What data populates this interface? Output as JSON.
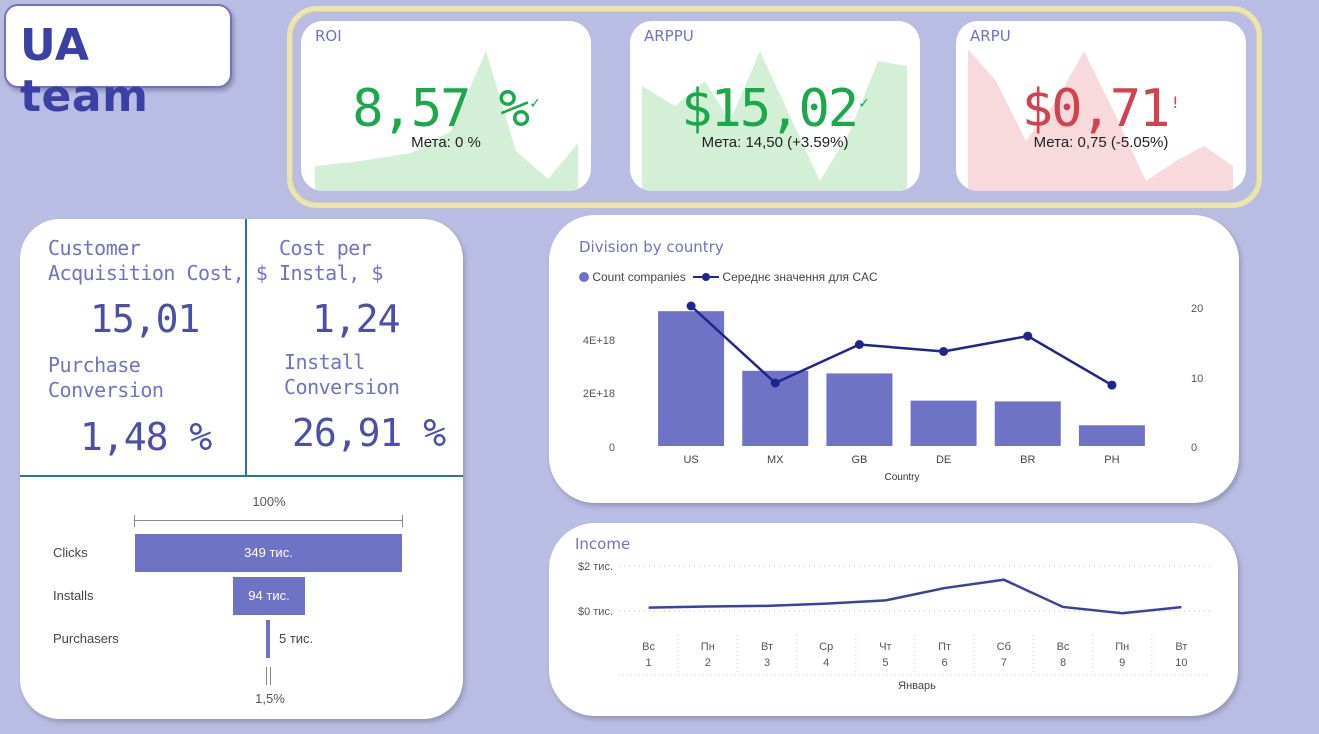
{
  "logo": {
    "text": "UA team"
  },
  "kpis": [
    {
      "title": "ROI",
      "value": "8,57 %",
      "status_icon": "✓",
      "goal": "Мета: 0 %",
      "status": "good",
      "color": "#1aa84a"
    },
    {
      "title": "ARPPU",
      "value": "$15,02",
      "status_icon": "✓",
      "goal": "Мета: 14,50 (+3.59%)",
      "status": "good",
      "color": "#1aa84a"
    },
    {
      "title": "ARPU",
      "value": "$0,71",
      "status_icon": "!",
      "goal": "Мета: 0,75 (-5.05%)",
      "status": "bad",
      "color": "#d2424e"
    }
  ],
  "metrics": {
    "cac_label_1": "Customer",
    "cac_label_2": "Acquisition Cost, $",
    "cac_value": "15,01",
    "cpi_label_1": "Cost per",
    "cpi_label_2": "Instal, $",
    "cpi_value": "1,24",
    "pc_label_1": "Purchase",
    "pc_label_2": "Conversion",
    "pc_value": "1,48 %",
    "ic_label_1": "Install",
    "ic_label_2": "Conversion",
    "ic_value": "26,91 %"
  },
  "funnel": {
    "top_label": "100%",
    "bottom_label": "1,5%",
    "rows": [
      {
        "label": "Clicks",
        "value": "349 тис.",
        "fraction": 1.0
      },
      {
        "label": "Installs",
        "value": "94 тис.",
        "fraction": 0.269
      },
      {
        "label": "Purchasers",
        "value": "5 тис.",
        "fraction": 0.015
      }
    ]
  },
  "country_chart": {
    "title": "Division by country",
    "legend_bar": "Count companies",
    "legend_line": "Середнє значення для CAC",
    "xlabel": "Country",
    "left_ticks": [
      "0",
      "2E+18",
      "4E+18"
    ],
    "right_ticks": [
      "0",
      "10",
      "20"
    ]
  },
  "income_chart": {
    "title": "Income",
    "y_ticks": [
      "$0 тис.",
      "$2 тис."
    ],
    "month_label": "Январь"
  },
  "chart_data": [
    {
      "type": "bar",
      "title": "Division by country",
      "xlabel": "Country",
      "categories": [
        "US",
        "MX",
        "GB",
        "DE",
        "BR",
        "PH"
      ],
      "series": [
        {
          "name": "Count companies",
          "axis": "left",
          "values": [
            5.2e+18,
            2.9e+18,
            2.8e+18,
            1.75e+18,
            1.72e+18,
            8e+17
          ]
        },
        {
          "name": "Середнє значення для CAC",
          "axis": "right",
          "type": "line",
          "values": [
            20,
            9,
            14.5,
            13.5,
            15.7,
            8.7
          ]
        }
      ],
      "ylim_left": [
        0,
        5.4e+18
      ],
      "ylim_right": [
        0,
        21
      ]
    },
    {
      "type": "line",
      "title": "Income",
      "x": [
        {
          "day": "Вс",
          "num": "1"
        },
        {
          "day": "Пн",
          "num": "2"
        },
        {
          "day": "Вт",
          "num": "3"
        },
        {
          "day": "Ср",
          "num": "4"
        },
        {
          "day": "Чт",
          "num": "5"
        },
        {
          "day": "Пт",
          "num": "6"
        },
        {
          "day": "Сб",
          "num": "7"
        },
        {
          "day": "Вс",
          "num": "8"
        },
        {
          "day": "Пн",
          "num": "9"
        },
        {
          "day": "Вт",
          "num": "10"
        }
      ],
      "values": [
        150,
        200,
        230,
        330,
        470,
        1020,
        1390,
        180,
        -100,
        170
      ],
      "ylim": [
        -200,
        2000
      ],
      "color": "#3b40a6"
    }
  ],
  "colors": {
    "accent": "#6f73c6",
    "line": "#1f2590",
    "good": "#1aa84a",
    "bad": "#d2424e",
    "background": "#b9bce3"
  }
}
